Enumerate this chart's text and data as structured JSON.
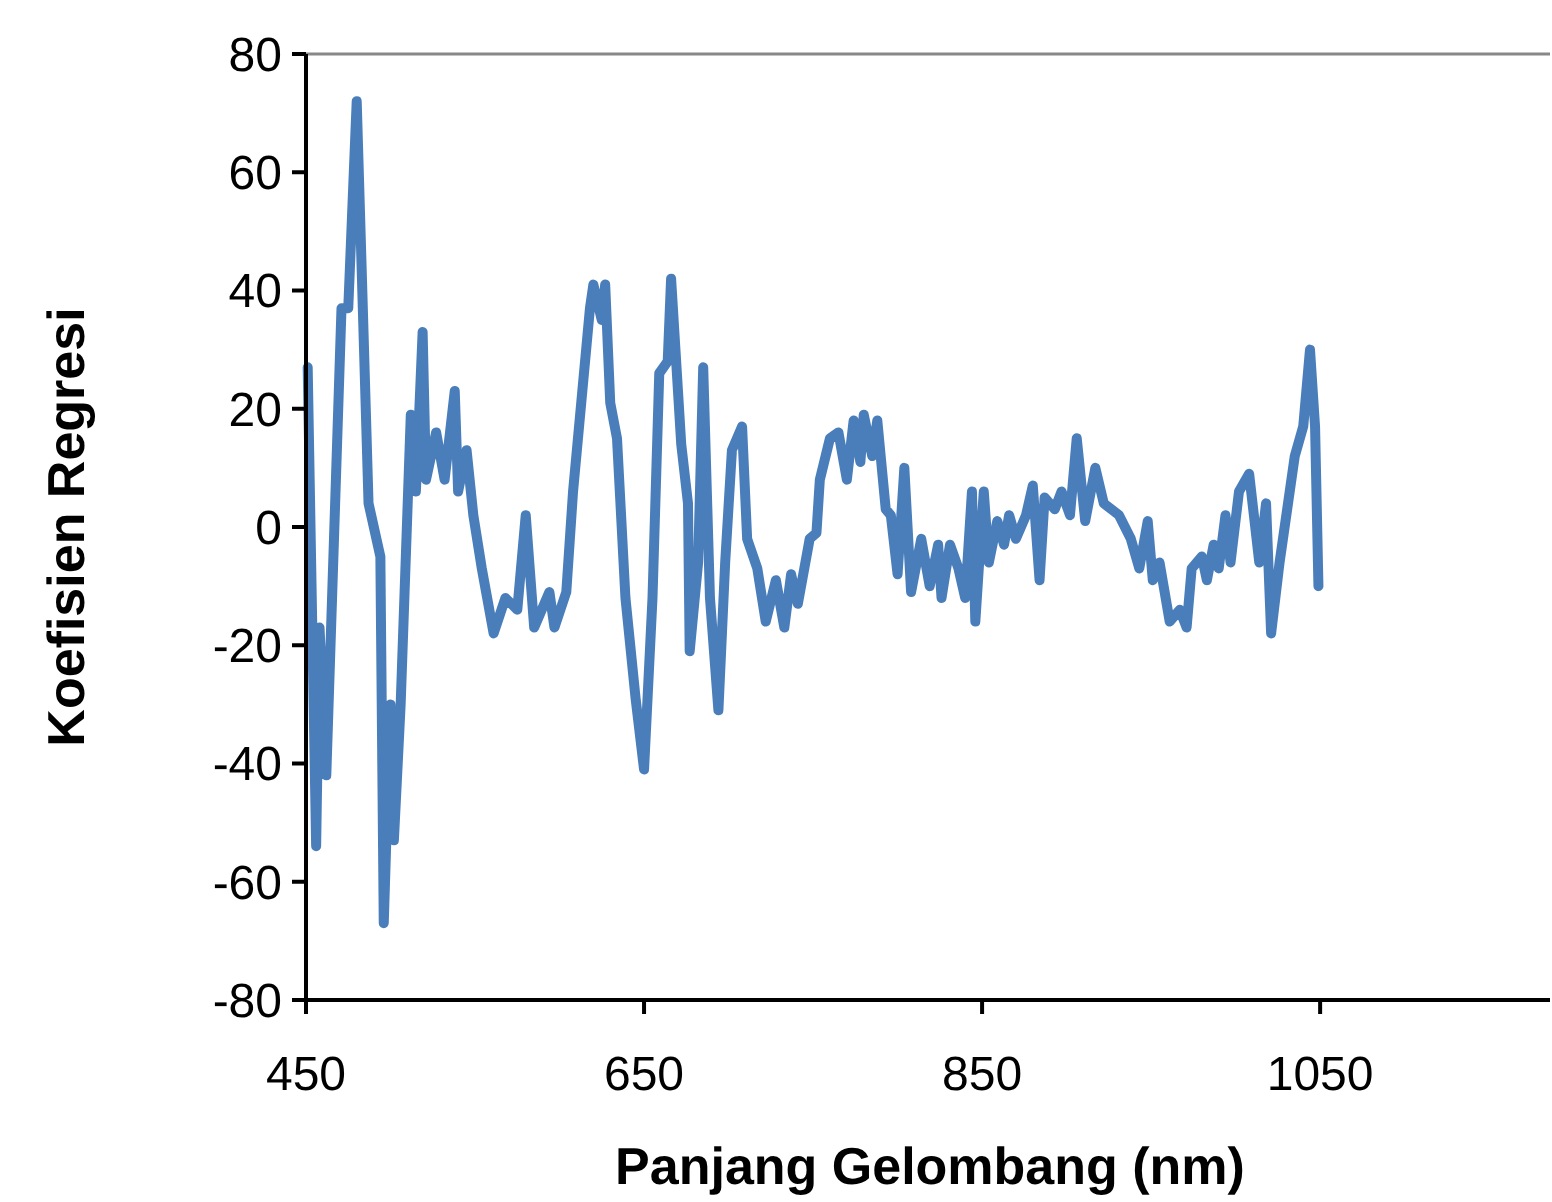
{
  "chart_data": {
    "type": "line",
    "xlabel": "Panjang Gelombang (nm)",
    "ylabel": "Koefisien Regresi",
    "xlim": [
      450,
      1186
    ],
    "xticks": [
      450,
      650,
      850,
      1050
    ],
    "ylim": [
      -80,
      80
    ],
    "yticks": [
      -80,
      -60,
      -40,
      -20,
      0,
      20,
      40,
      60,
      80
    ],
    "grid": false,
    "marker": "none",
    "line_style": "solid",
    "series": [
      {
        "color": "#4a7ebb",
        "x": [
          451,
          456,
          458,
          462,
          471,
          475,
          480,
          483,
          487,
          494,
          496,
          500,
          502,
          506,
          512,
          515,
          519,
          521,
          527,
          532,
          538,
          540,
          545,
          549,
          554,
          561,
          568,
          575,
          580,
          585,
          594,
          597,
          604,
          608,
          618,
          620,
          625,
          627,
          630,
          634,
          639,
          645,
          650,
          655,
          659,
          664,
          666,
          672,
          676,
          677,
          682,
          685,
          689,
          694,
          698,
          702,
          708,
          711,
          717,
          722,
          728,
          733,
          737,
          741,
          748,
          752,
          754,
          760,
          765,
          770,
          774,
          778,
          780,
          785,
          788,
          793,
          796,
          800,
          804,
          808,
          814,
          819,
          824,
          826,
          831,
          836,
          840,
          844,
          846,
          851,
          854,
          859,
          863,
          866,
          870,
          876,
          880,
          884,
          887,
          893,
          897,
          902,
          906,
          911,
          917,
          922,
          931,
          938,
          943,
          948,
          951,
          955,
          961,
          967,
          971,
          974,
          980,
          983,
          987,
          990,
          994,
          997,
          1002,
          1008,
          1014,
          1018,
          1021,
          1026,
          1035,
          1040,
          1044,
          1047,
          1049
        ],
        "values": [
          27,
          -54,
          -17,
          -42,
          37,
          37,
          72,
          43,
          4,
          -5,
          -67,
          -30,
          -53,
          -30,
          19,
          6,
          33,
          8,
          16,
          8,
          23,
          6,
          13,
          2,
          -7,
          -18,
          -12,
          -14,
          2,
          -17,
          -11,
          -17,
          -11,
          6,
          37,
          41,
          35,
          41,
          21,
          15,
          -12,
          -29,
          -41,
          -12,
          26,
          28,
          42,
          14,
          4,
          -21,
          -6,
          27,
          -12,
          -31,
          -6,
          13,
          17,
          -2,
          -7,
          -16,
          -9,
          -17,
          -8,
          -13,
          -2,
          -1,
          8,
          15,
          16,
          8,
          18,
          11,
          19,
          12,
          18,
          3,
          2,
          -8,
          10,
          -11,
          -2,
          -10,
          -3,
          -12,
          -3,
          -7,
          -12,
          6,
          -16,
          6,
          -6,
          1,
          -3,
          2,
          -2,
          2,
          7,
          -9,
          5,
          3,
          6,
          2,
          15,
          1,
          10,
          4,
          2,
          -2,
          -7,
          1,
          -9,
          -6,
          -16,
          -14,
          -17,
          -7,
          -5,
          -9,
          -3,
          -7,
          2,
          -6,
          6,
          9,
          -6,
          4,
          -18,
          -6,
          12,
          17,
          30,
          17,
          -10
        ]
      }
    ]
  }
}
